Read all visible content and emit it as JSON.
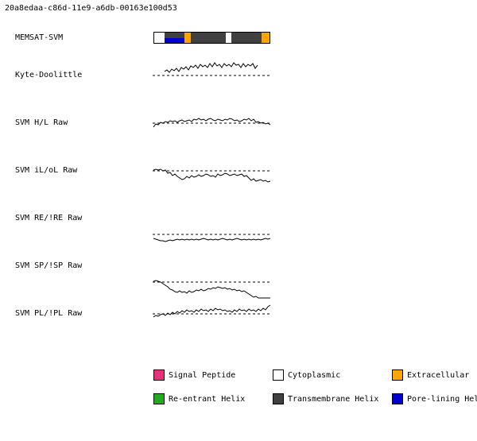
{
  "header": {
    "id": "20a8edaa-c86d-11e9-a6db-00163e100d53"
  },
  "rows": [
    {
      "label": "MEMSAT-SVM"
    },
    {
      "label": "Kyte-Doolittle"
    },
    {
      "label": "SVM H/L Raw"
    },
    {
      "label": "SVM iL/oL Raw"
    },
    {
      "label": "SVM RE/!RE Raw"
    },
    {
      "label": "SVM SP/!SP Raw"
    },
    {
      "label": "SVM PL/!PL Raw"
    }
  ],
  "memsat_segments": [
    {
      "type": "cytoplasmic",
      "from": 0.0,
      "to": 0.09
    },
    {
      "type": "transmembrane",
      "from": 0.09,
      "to": 0.26
    },
    {
      "type": "extracellular",
      "from": 0.26,
      "to": 0.32
    },
    {
      "type": "transmembrane",
      "from": 0.32,
      "to": 0.62
    },
    {
      "type": "cytoplasmic",
      "from": 0.62,
      "to": 0.67
    },
    {
      "type": "transmembrane",
      "from": 0.67,
      "to": 0.93
    },
    {
      "type": "extracellular",
      "from": 0.93,
      "to": 1.0
    }
  ],
  "pore_lining": [
    {
      "from": 0.09,
      "to": 0.26
    }
  ],
  "legend": [
    {
      "label": "Signal Peptide",
      "color": "#e8337a"
    },
    {
      "label": "Cytoplasmic",
      "color": "#ffffff"
    },
    {
      "label": "Extracellular",
      "color": "#ffa500"
    },
    {
      "label": "Re-entrant Helix",
      "color": "#22aa22"
    },
    {
      "label": "Transmembrane Helix",
      "color": "#404040"
    },
    {
      "label": "Pore-lining Hel",
      "color": "#0000cc"
    }
  ],
  "colors": {
    "cytoplasmic": "#ffffff",
    "transmembrane": "#404040",
    "extracellular": "#ffa500",
    "pore": "#0000cc",
    "trace": "#000000",
    "threshold": "#000000"
  }
}
